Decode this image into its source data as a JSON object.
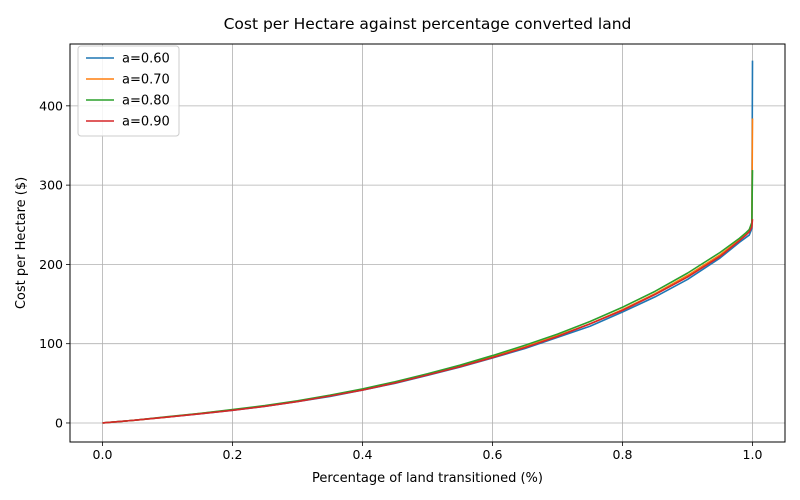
{
  "chart_data": {
    "type": "line",
    "title": "Cost per Hectare against percentage converted land",
    "xlabel": "Percentage of land transitioned (%)",
    "ylabel": "Cost per Hectare ($)",
    "xlim": [
      -0.05,
      1.05
    ],
    "ylim": [
      -24,
      478
    ],
    "xticks": [
      0.0,
      0.2,
      0.4,
      0.6,
      0.8,
      1.0
    ],
    "xtick_labels": [
      "0.0",
      "0.2",
      "0.4",
      "0.6",
      "0.8",
      "1.0"
    ],
    "yticks": [
      0,
      100,
      200,
      300,
      400
    ],
    "ytick_labels": [
      "0",
      "100",
      "200",
      "300",
      "400"
    ],
    "grid": true,
    "legend_position": "top-left",
    "series": [
      {
        "name": "a=0.60",
        "color": "#1f77b4",
        "x": [
          0,
          0.05,
          0.1,
          0.15,
          0.2,
          0.25,
          0.3,
          0.35,
          0.4,
          0.45,
          0.5,
          0.55,
          0.6,
          0.65,
          0.7,
          0.75,
          0.8,
          0.85,
          0.9,
          0.95,
          0.98,
          0.99,
          0.995,
          0.999,
          1.0
        ],
        "y": [
          0,
          3.5,
          7.5,
          11.5,
          16,
          21,
          27,
          33.5,
          41.5,
          50,
          60,
          70.5,
          82,
          94,
          108,
          122,
          140,
          159,
          181,
          208,
          228,
          234,
          237,
          245,
          457
        ]
      },
      {
        "name": "a=0.70",
        "color": "#ff7f0e",
        "x": [
          0,
          0.05,
          0.1,
          0.15,
          0.2,
          0.25,
          0.3,
          0.35,
          0.4,
          0.45,
          0.5,
          0.55,
          0.6,
          0.65,
          0.7,
          0.75,
          0.8,
          0.85,
          0.9,
          0.95,
          0.98,
          0.99,
          0.995,
          0.999,
          1.0
        ],
        "y": [
          0,
          3.5,
          7.5,
          12,
          16.5,
          21.5,
          27.5,
          34.5,
          42,
          51,
          61,
          72,
          83.5,
          96,
          110,
          125,
          143,
          163,
          186,
          212,
          231,
          238,
          242,
          252,
          384
        ]
      },
      {
        "name": "a=0.80",
        "color": "#2ca02c",
        "x": [
          0,
          0.05,
          0.1,
          0.15,
          0.2,
          0.25,
          0.3,
          0.35,
          0.4,
          0.45,
          0.5,
          0.55,
          0.6,
          0.65,
          0.7,
          0.75,
          0.8,
          0.85,
          0.9,
          0.95,
          0.98,
          0.99,
          0.995,
          0.999,
          1.0
        ],
        "y": [
          0,
          3.5,
          8,
          12,
          17,
          22,
          28,
          35,
          43,
          52,
          62,
          73,
          85,
          98,
          112,
          128,
          146,
          166,
          189,
          215,
          233,
          240,
          244,
          253,
          319
        ]
      },
      {
        "name": "a=0.90",
        "color": "#d62728",
        "x": [
          0,
          0.05,
          0.1,
          0.15,
          0.2,
          0.25,
          0.3,
          0.35,
          0.4,
          0.45,
          0.5,
          0.55,
          0.6,
          0.65,
          0.7,
          0.75,
          0.8,
          0.85,
          0.9,
          0.95,
          0.98,
          0.99,
          0.995,
          0.999,
          1.0
        ],
        "y": [
          0,
          3.5,
          7.5,
          11.5,
          16,
          21,
          27,
          34,
          41.5,
          50.5,
          60.5,
          71,
          82.5,
          95,
          109,
          125,
          142,
          162,
          184,
          210,
          230,
          237,
          241,
          247,
          257
        ]
      }
    ]
  }
}
